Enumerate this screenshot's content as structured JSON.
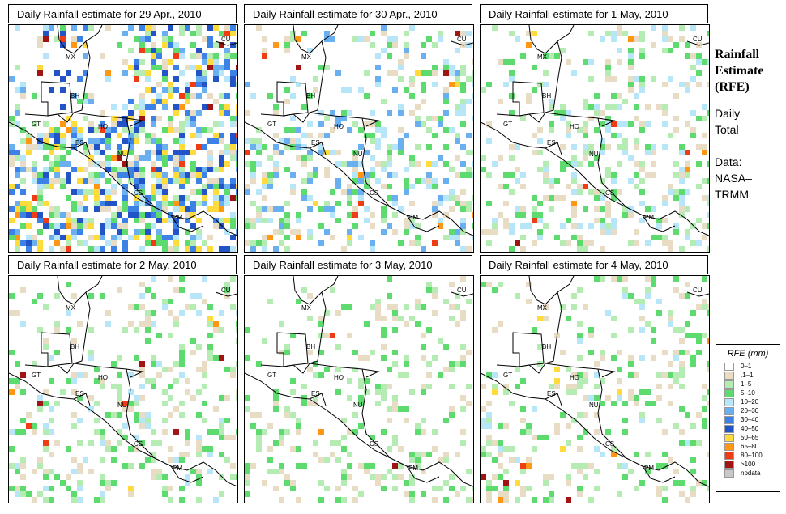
{
  "side": {
    "title_lines": [
      "Rainfall",
      "Estimate",
      "(RFE)"
    ],
    "daily": "Daily",
    "total": "Total",
    "data": "Data:",
    "nasa": "NASA–",
    "trmm": "TRMM"
  },
  "legend": {
    "title": "RFE (mm)",
    "items": [
      {
        "label": "0–1",
        "color": "#ffffff"
      },
      {
        "label": ".1–1",
        "color": "#e8dcc4"
      },
      {
        "label": "1–5",
        "color": "#b4ecb4"
      },
      {
        "label": "5–10",
        "color": "#5edb6e"
      },
      {
        "label": "10–20",
        "color": "#b6e6f8"
      },
      {
        "label": "20–30",
        "color": "#6ab0f0"
      },
      {
        "label": "30–40",
        "color": "#3c82e6"
      },
      {
        "label": "40–50",
        "color": "#2254c8"
      },
      {
        "label": "50–65",
        "color": "#ffdc3c"
      },
      {
        "label": "65–80",
        "color": "#ff9614"
      },
      {
        "label": "80–100",
        "color": "#f03c14"
      },
      {
        "label": ">100",
        "color": "#a01414"
      },
      {
        "label": "nodata",
        "color": "#c8c8c8"
      }
    ]
  },
  "country_labels": [
    "CU",
    "MX",
    "BH",
    "GT",
    "HO",
    "ES",
    "NU",
    "CS",
    "PM"
  ],
  "panels": [
    {
      "title": "Daily Rainfall estimate for  29 Apr., 2010",
      "intensity": 1.0,
      "seed": 11
    },
    {
      "title": "Daily Rainfall estimate for  30 Apr., 2010",
      "intensity": 0.6,
      "seed": 23
    },
    {
      "title": "Daily Rainfall estimate for  1 May, 2010",
      "intensity": 0.5,
      "seed": 37
    },
    {
      "title": "Daily Rainfall estimate for  2 May, 2010",
      "intensity": 0.45,
      "seed": 41
    },
    {
      "title": "Daily Rainfall estimate for  3 May, 2010",
      "intensity": 0.35,
      "seed": 53
    },
    {
      "title": "Daily Rainfall estimate for  4 May, 2010",
      "intensity": 0.4,
      "seed": 67
    }
  ]
}
